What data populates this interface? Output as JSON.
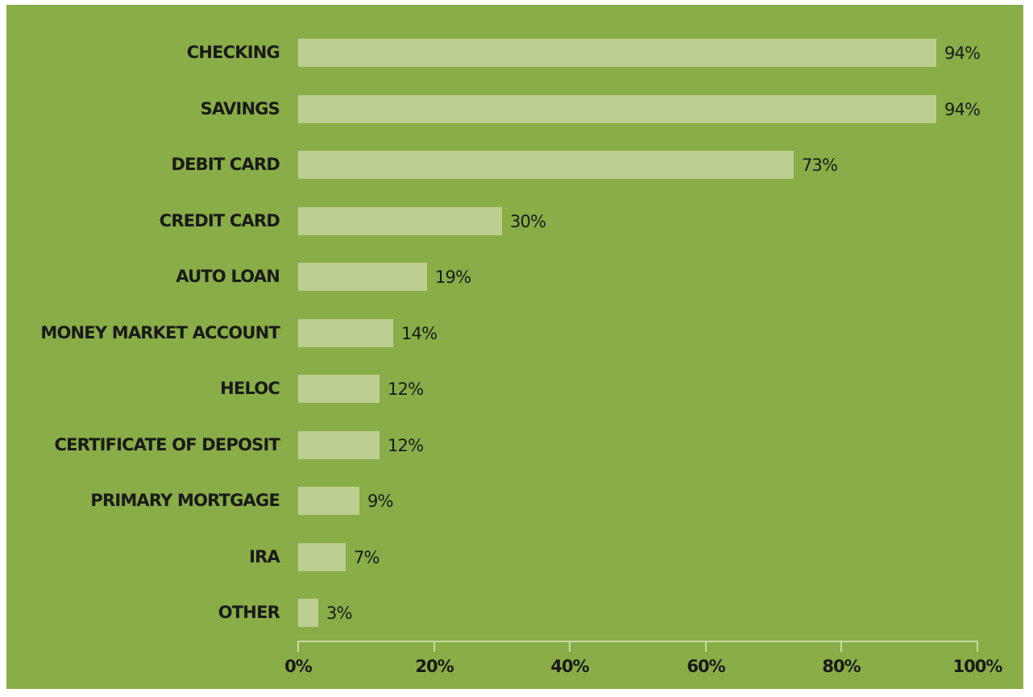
{
  "chart_data": {
    "type": "bar",
    "orientation": "horizontal",
    "title": "",
    "xlabel": "",
    "ylabel": "",
    "xlim": [
      0,
      100
    ],
    "grid": false,
    "legend": null,
    "categories": [
      "CHECKING",
      "SAVINGS",
      "DEBIT CARD",
      "CREDIT CARD",
      "AUTO LOAN",
      "MONEY MARKET ACCOUNT",
      "HELOC",
      "CERTIFICATE OF DEPOSIT",
      "PRIMARY MORTGAGE",
      "IRA",
      "OTHER"
    ],
    "values": [
      94,
      94,
      73,
      30,
      19,
      14,
      12,
      12,
      9,
      7,
      3
    ],
    "value_labels": [
      "94%",
      "94%",
      "73%",
      "30%",
      "19%",
      "14%",
      "12%",
      "12%",
      "9%",
      "7%",
      "3%"
    ],
    "x_ticks": [
      "0%",
      "20%",
      "40%",
      "60%",
      "80%",
      "100%"
    ],
    "colors": {
      "background": "#89ad47",
      "bar": "#bccf90",
      "axis": "#c8d9a4",
      "text": "#1a1a1a"
    }
  }
}
